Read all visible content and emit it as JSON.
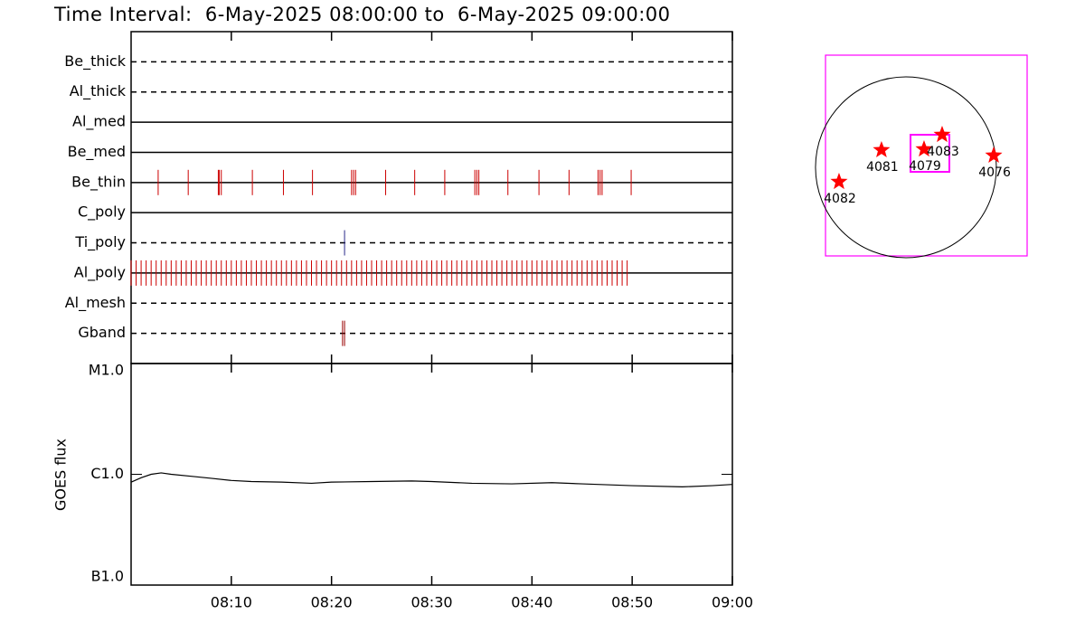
{
  "chart_data": [
    {
      "type": "timeline",
      "title": "Time Interval:  6-May-2025 08:00:00 to  6-May-2025 09:00:00",
      "xlim": [
        0,
        60
      ],
      "series": [
        {
          "name": "Be_thick",
          "style": "dashed",
          "color": "#cc0000",
          "values": []
        },
        {
          "name": "Al_thick",
          "style": "dashed",
          "color": "#cc0000",
          "values": []
        },
        {
          "name": "Al_med",
          "style": "solid",
          "color": "#cc0000",
          "values": []
        },
        {
          "name": "Be_med",
          "style": "solid",
          "color": "#cc0000",
          "values": []
        },
        {
          "name": "Be_thin",
          "style": "solid",
          "color": "#cc0000",
          "values": [
            2.7,
            5.7,
            8.7,
            8.8,
            9.0,
            12.1,
            15.2,
            18.1,
            22.0,
            22.2,
            22.4,
            25.4,
            28.3,
            31.3,
            34.3,
            34.5,
            34.7,
            37.6,
            40.7,
            43.7,
            46.6,
            46.8,
            47.0,
            49.9
          ]
        },
        {
          "name": "C_poly",
          "style": "solid",
          "color": "#cc0000",
          "values": []
        },
        {
          "name": "Ti_poly",
          "style": "dashed",
          "color": "#2a2a8a",
          "values": [
            21.3
          ]
        },
        {
          "name": "Al_poly",
          "style": "solid",
          "color": "#cc0000",
          "values": [
            0,
            0.5,
            1,
            1.5,
            2,
            2.5,
            3,
            3.5,
            4,
            4.5,
            5,
            5.5,
            6,
            6.5,
            7,
            7.5,
            8,
            8.5,
            9,
            9.5,
            10,
            10.5,
            11,
            11.5,
            12,
            12.5,
            13,
            13.5,
            14,
            14.5,
            15,
            15.5,
            16,
            16.5,
            17,
            17.5,
            18,
            18.5,
            19,
            19.5,
            20,
            20.5,
            21,
            21.5,
            22,
            22.5,
            23,
            23.5,
            24,
            24.5,
            25,
            25.5,
            26,
            26.5,
            27,
            27.5,
            28,
            28.5,
            29,
            29.5,
            30,
            30.5,
            31,
            31.5,
            32,
            32.5,
            33,
            33.5,
            34,
            34.5,
            35,
            35.5,
            36,
            36.5,
            37,
            37.5,
            38,
            38.5,
            39,
            39.5,
            40,
            40.5,
            41,
            41.5,
            42,
            42.5,
            43,
            43.5,
            44,
            44.5,
            45,
            45.5,
            46,
            46.5,
            47,
            47.5,
            48,
            48.5,
            49,
            49.5
          ]
        },
        {
          "name": "Al_mesh",
          "style": "dashed",
          "color": "#cc0000",
          "values": []
        },
        {
          "name": "Gband",
          "style": "dashed",
          "color": "#990000",
          "values": [
            21.1,
            21.3
          ]
        }
      ]
    },
    {
      "type": "line",
      "ylabel": "GOES flux",
      "log": true,
      "color": "#000000",
      "xlim": [
        0,
        60
      ],
      "xticks": [
        {
          "value": 10,
          "label": "08:10"
        },
        {
          "value": 20,
          "label": "08:20"
        },
        {
          "value": 30,
          "label": "08:30"
        },
        {
          "value": 40,
          "label": "08:40"
        },
        {
          "value": 50,
          "label": "08:50"
        },
        {
          "value": 60,
          "label": "09:00"
        }
      ],
      "ylim": [
        1e-07,
        1e-05
      ],
      "yticks": [
        {
          "value": 1e-07,
          "label": "B1.0"
        },
        {
          "value": 1e-06,
          "label": "C1.0"
        },
        {
          "value": 1e-05,
          "label": "M1.0"
        }
      ],
      "x": [
        0,
        1,
        2,
        3,
        4,
        6,
        8,
        10,
        12,
        15,
        18,
        20,
        24,
        28,
        30,
        34,
        38,
        42,
        45,
        50,
        55,
        58,
        60
      ],
      "values": [
        8.5e-07,
        9.3e-07,
        1e-06,
        1.03e-06,
        1e-06,
        9.6e-07,
        9.2e-07,
        8.8e-07,
        8.6e-07,
        8.5e-07,
        8.3e-07,
        8.5e-07,
        8.6e-07,
        8.7e-07,
        8.6e-07,
        8.3e-07,
        8.2e-07,
        8.4e-07,
        8.2e-07,
        7.9e-07,
        7.7e-07,
        7.9e-07,
        8.1e-07
      ]
    },
    {
      "type": "scatter",
      "color": "#ff0000",
      "box_color": "#ff00ff",
      "xlim": [
        -845,
        1273
      ],
      "ylim": [
        -931,
        1178
      ],
      "disk_radius": 950,
      "fov": {
        "xlim": [
          48,
          456
        ],
        "ylim": [
          -48,
          342
        ]
      },
      "labels": [
        "4082",
        "4081",
        "4079",
        "4083",
        "4076"
      ],
      "x": [
        -703,
        -257,
        190,
        380,
        922
      ],
      "y": [
        -152,
        181,
        190,
        342,
        124
      ]
    }
  ]
}
